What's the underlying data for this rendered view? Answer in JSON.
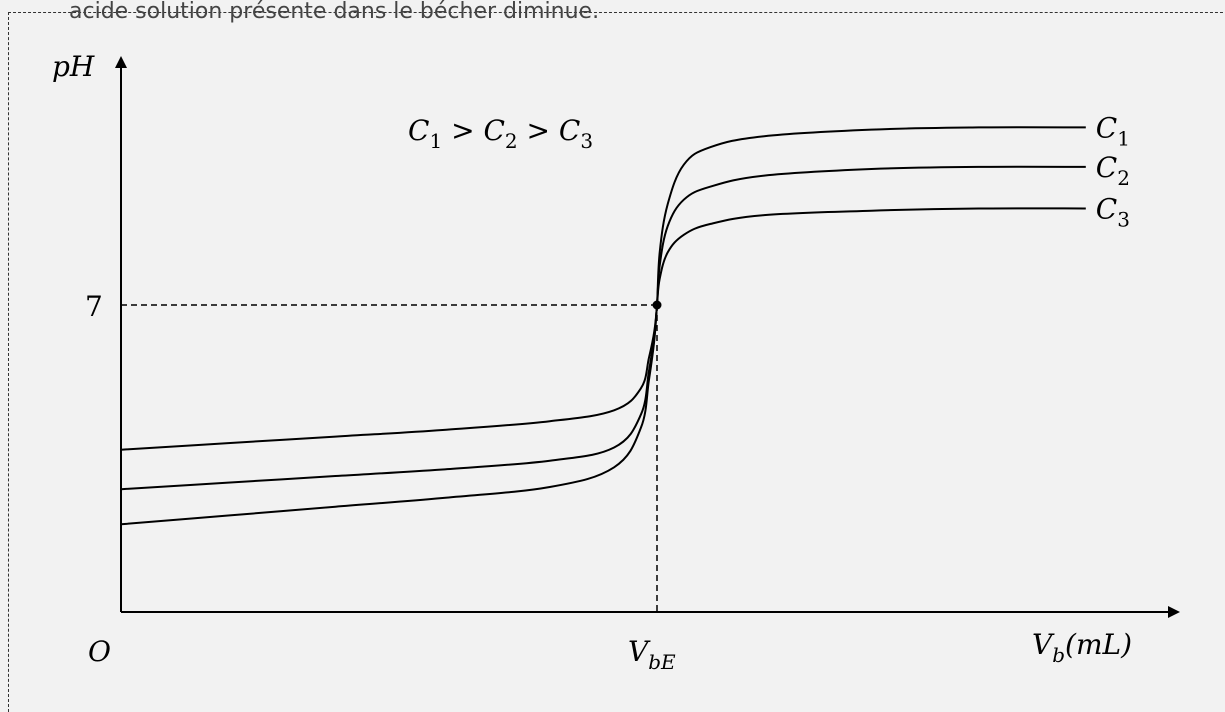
{
  "top_text": "acide solution présente dans le bécher diminue.",
  "chart_data": {
    "type": "line",
    "title": "",
    "ylabel": "pH",
    "xlabel_main": "V",
    "xlabel_sub": "b",
    "xlabel_unit": "(mL)",
    "origin_label": "O",
    "y_tick": {
      "value": 7,
      "label": "7"
    },
    "x_tick": {
      "main": "V",
      "sub": "bE"
    },
    "inequality": {
      "parts": [
        {
          "main": "C",
          "sub": "1"
        },
        {
          "op": ">"
        },
        {
          "main": "C",
          "sub": "2"
        },
        {
          "op": ">"
        },
        {
          "main": "C",
          "sub": "3"
        }
      ]
    },
    "ylim": [
      0,
      14
    ],
    "xlim": [
      0,
      1.95
    ],
    "equivalence_x": 1.0,
    "series": [
      {
        "name": "C",
        "name_sub": "1",
        "x": [
          0,
          0.2,
          0.4,
          0.6,
          0.8,
          0.92,
          0.97,
          0.985,
          0.995,
          1.0,
          1.005,
          1.02,
          1.05,
          1.1,
          1.2,
          1.4,
          1.6,
          1.8
        ],
        "y": [
          3.7,
          3.85,
          4.0,
          4.15,
          4.35,
          4.6,
          5.1,
          5.8,
          6.4,
          7.0,
          8.2,
          9.3,
          10.2,
          10.6,
          10.85,
          11.0,
          11.05,
          11.05
        ]
      },
      {
        "name": "C",
        "name_sub": "2",
        "x": [
          0,
          0.2,
          0.4,
          0.6,
          0.8,
          0.92,
          0.97,
          0.985,
          0.995,
          1.0,
          1.005,
          1.02,
          1.05,
          1.1,
          1.2,
          1.4,
          1.6,
          1.8
        ],
        "y": [
          2.8,
          2.95,
          3.1,
          3.25,
          3.45,
          3.75,
          4.5,
          5.5,
          6.3,
          7.0,
          7.9,
          8.8,
          9.4,
          9.7,
          9.95,
          10.1,
          10.15,
          10.15
        ]
      },
      {
        "name": "C",
        "name_sub": "3",
        "x": [
          0,
          0.2,
          0.4,
          0.6,
          0.8,
          0.92,
          0.97,
          0.985,
          0.995,
          1.0,
          1.005,
          1.02,
          1.05,
          1.1,
          1.2,
          1.4,
          1.6,
          1.8
        ],
        "y": [
          2.0,
          2.2,
          2.4,
          2.6,
          2.85,
          3.3,
          4.2,
          5.3,
          6.2,
          7.0,
          7.6,
          8.2,
          8.6,
          8.85,
          9.05,
          9.15,
          9.2,
          9.2
        ]
      }
    ],
    "grid": false,
    "legend": "inline labels at right end of curves",
    "colors": {
      "background": "#f2f2f2",
      "line": "#000000",
      "frame": "#333333"
    }
  }
}
